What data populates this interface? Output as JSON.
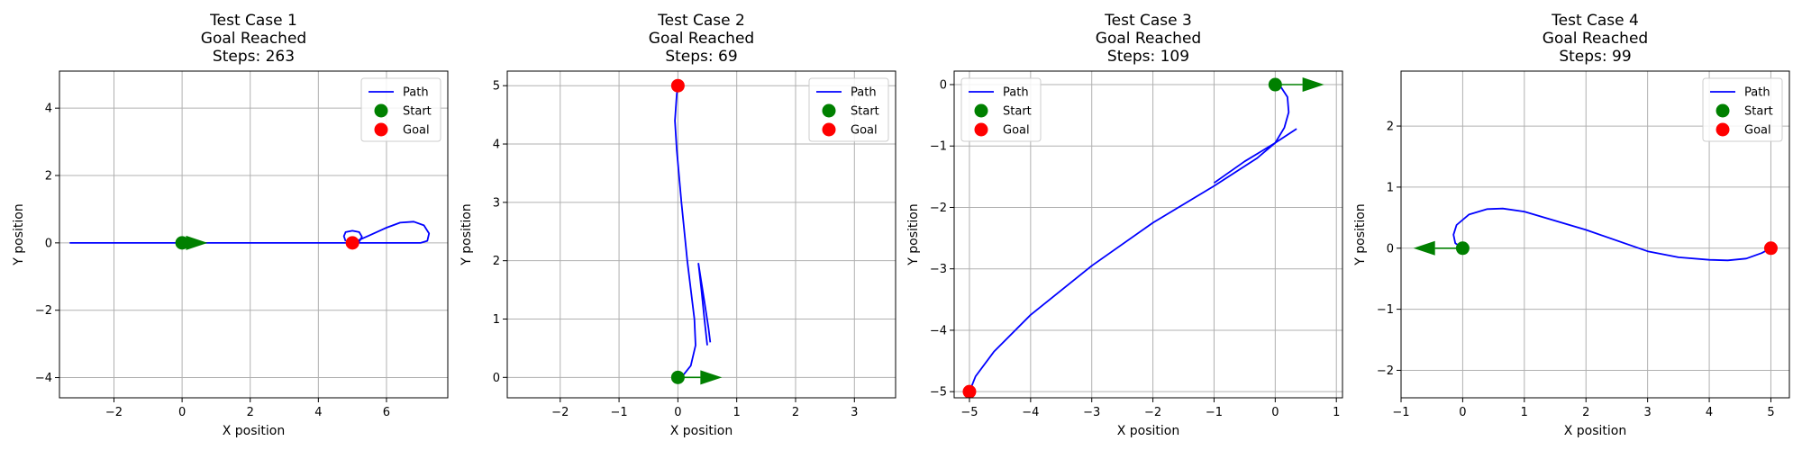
{
  "colors": {
    "path": "#0000ff",
    "start": "#008000",
    "goal": "#ff0000",
    "arrow": "#008000",
    "grid": "#b0b0b0"
  },
  "chart_data": [
    {
      "type": "line",
      "title_lines": [
        "Test Case 1",
        "Goal Reached",
        "Steps: 263"
      ],
      "xlabel": "X position",
      "ylabel": "Y position",
      "xlim": [
        -3.6,
        7.8
      ],
      "ylim": [
        -4.6,
        5.1
      ],
      "xticks": [
        -2,
        0,
        2,
        4,
        6
      ],
      "yticks": [
        -4,
        -2,
        0,
        2,
        4
      ],
      "grid": true,
      "legend": {
        "placement": "top-right",
        "entries": [
          "Path",
          "Start",
          "Goal"
        ]
      },
      "start": [
        0,
        0
      ],
      "goal": [
        5,
        0
      ],
      "start_heading": [
        0.75,
        0
      ],
      "series": [
        {
          "name": "Path",
          "x": [
            -3.3,
            -2,
            0,
            2,
            4,
            4.9
          ],
          "y": [
            0,
            0,
            0,
            0,
            0,
            0
          ]
        },
        {
          "x": [
            4.8,
            4.75,
            4.8,
            5.0,
            5.2,
            5.28,
            5.2,
            5.0,
            4.85
          ],
          "y": [
            0.05,
            0.2,
            0.32,
            0.36,
            0.32,
            0.18,
            0.04,
            -0.03,
            0.0
          ]
        },
        {
          "x": [
            5.0,
            5.5,
            6.0,
            6.4,
            6.8,
            7.1,
            7.25,
            7.2,
            7.0,
            6.0,
            5.0
          ],
          "y": [
            0.0,
            0.22,
            0.45,
            0.6,
            0.63,
            0.52,
            0.28,
            0.06,
            0.0,
            0.0,
            0.0
          ]
        }
      ]
    },
    {
      "type": "line",
      "title_lines": [
        "Test Case 2",
        "Goal Reached",
        "Steps: 69"
      ],
      "xlabel": "X position",
      "ylabel": "Y position",
      "xlim": [
        -2.9,
        3.7
      ],
      "ylim": [
        -0.35,
        5.25
      ],
      "xticks": [
        -2,
        -1,
        0,
        1,
        2,
        3
      ],
      "yticks": [
        0,
        1,
        2,
        3,
        4,
        5
      ],
      "grid": true,
      "legend": {
        "placement": "top-right",
        "entries": [
          "Path",
          "Start",
          "Goal"
        ]
      },
      "start": [
        0,
        0
      ],
      "goal": [
        0,
        5
      ],
      "start_heading": [
        0.75,
        0
      ],
      "series": [
        {
          "name": "Path",
          "x": [
            0,
            0.1,
            0.22,
            0.3,
            0.28,
            0.16,
            0.06,
            -0.02,
            -0.05,
            -0.02,
            0
          ],
          "y": [
            0,
            0.05,
            0.2,
            0.55,
            1.0,
            2.0,
            3.0,
            3.9,
            4.4,
            4.85,
            5.0
          ]
        },
        {
          "x": [
            0.5,
            0.45,
            0.4,
            0.35,
            0.45,
            0.52,
            0.55
          ],
          "y": [
            0.55,
            1.0,
            1.5,
            1.95,
            1.3,
            0.85,
            0.6
          ]
        }
      ]
    },
    {
      "type": "line",
      "title_lines": [
        "Test Case 3",
        "Goal Reached",
        "Steps: 109"
      ],
      "xlabel": "X position",
      "ylabel": "Y position",
      "xlim": [
        -5.25,
        1.1
      ],
      "ylim": [
        -5.1,
        0.22
      ],
      "xticks": [
        -5,
        -4,
        -3,
        -2,
        -1,
        0,
        1
      ],
      "yticks": [
        -5,
        -4,
        -3,
        -2,
        -1,
        0
      ],
      "grid": true,
      "legend": {
        "placement": "top-left",
        "entries": [
          "Path",
          "Start",
          "Goal"
        ]
      },
      "start": [
        0,
        0
      ],
      "goal": [
        -5,
        -5
      ],
      "start_heading": [
        0.8,
        0
      ],
      "series": [
        {
          "name": "Path",
          "x": [
            0,
            0.1,
            0.2,
            0.22,
            0.15,
            0,
            -0.3,
            -1,
            -2,
            -3,
            -4,
            -4.6,
            -4.9,
            -5.0
          ],
          "y": [
            0,
            -0.05,
            -0.2,
            -0.45,
            -0.7,
            -0.95,
            -1.2,
            -1.65,
            -2.25,
            -2.95,
            -3.75,
            -4.35,
            -4.75,
            -5.0
          ]
        },
        {
          "x": [
            -1.0,
            -0.5,
            0,
            0.35
          ],
          "y": [
            -1.6,
            -1.25,
            -0.95,
            -0.72
          ]
        }
      ]
    },
    {
      "type": "line",
      "title_lines": [
        "Test Case 4",
        "Goal Reached",
        "Steps: 99"
      ],
      "xlabel": "X position",
      "ylabel": "Y position",
      "xlim": [
        -1.0,
        5.3
      ],
      "ylim": [
        -2.45,
        2.9
      ],
      "xticks": [
        -1,
        0,
        1,
        2,
        3,
        4,
        5
      ],
      "yticks": [
        -2,
        -1,
        0,
        1,
        2
      ],
      "grid": true,
      "legend": {
        "placement": "top-right",
        "entries": [
          "Path",
          "Start",
          "Goal"
        ]
      },
      "start": [
        0,
        0
      ],
      "goal": [
        5,
        0
      ],
      "start_heading": [
        -0.8,
        0
      ],
      "series": [
        {
          "name": "Path",
          "x": [
            0,
            -0.12,
            -0.15,
            -0.1,
            0.1,
            0.4,
            0.65,
            1.0,
            2.0,
            3.0,
            3.5,
            4.0,
            4.3,
            4.6,
            4.85,
            5.0
          ],
          "y": [
            0,
            0.08,
            0.22,
            0.38,
            0.55,
            0.64,
            0.65,
            0.6,
            0.3,
            -0.05,
            -0.15,
            -0.19,
            -0.2,
            -0.17,
            -0.08,
            0
          ]
        }
      ]
    }
  ]
}
